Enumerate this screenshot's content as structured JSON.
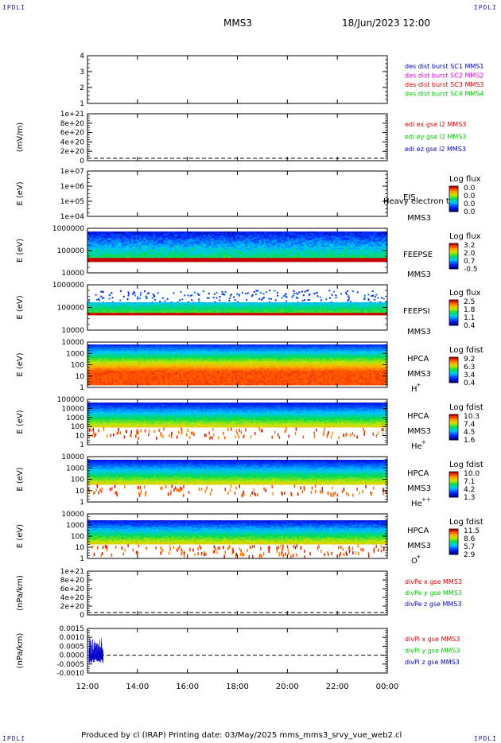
{
  "corners": {
    "tl": "IPDLI",
    "tr": "IPDLI",
    "bl": "IPDLI",
    "br": "IPDLI"
  },
  "header": {
    "spacecraft": "MMS3",
    "datetime": "18/Jun/2023 12:00"
  },
  "footer": {
    "text": "Produced by cl (IRAP)   Printing date: 03/May/2025   mms_mms3_srvy_vue_web2.cl"
  },
  "time_axis": {
    "ticks": [
      "12:00",
      "14:00",
      "16:00",
      "18:00",
      "20:00",
      "22:00",
      "00:00"
    ]
  },
  "colors": {
    "red": "#e00000",
    "green": "#00c800",
    "blue": "#0000c8",
    "magenta": "#e000e0"
  },
  "chart_data": [
    {
      "type": "line",
      "id": "dist",
      "ylabel": "",
      "yticks": [
        "1",
        "2",
        "3",
        "4"
      ],
      "legend": [
        {
          "label": "des dist burst SC1 MMS1",
          "color": "#0000c8"
        },
        {
          "label": "des dist burst SC2 MMS2",
          "color": "#e000e0"
        },
        {
          "label": "des dist burst SC3 MMS3",
          "color": "#e00000"
        },
        {
          "label": "des dist burst SC4 MMS4",
          "color": "#00c800"
        }
      ]
    },
    {
      "type": "line",
      "id": "edi",
      "ylabel": "(mV/m)",
      "yticks": [
        "0",
        "2e+20",
        "4e+20",
        "6e+20",
        "8e+20",
        "1e+21"
      ],
      "legend": [
        {
          "label": "edi ex gse l2 MMS3",
          "color": "#e00000"
        },
        {
          "label": "edi ey gse l2 MMS3",
          "color": "#00c800"
        },
        {
          "label": "edi ez gse l2 MMS3",
          "color": "#0000c8"
        }
      ]
    },
    {
      "type": "heatmap",
      "id": "eis",
      "ylabel": "E (eV)",
      "yticks": [
        "1e+04",
        "1e+05",
        "1e+06",
        "1e+07"
      ],
      "labels": [
        "EIS",
        "MMS3"
      ],
      "overlay": "Heavy electron to",
      "cbar_title": "Log flux",
      "cbar_ticks": [
        "0.0",
        "0.0",
        "0.0",
        "0.0"
      ]
    },
    {
      "type": "heatmap",
      "id": "feepse",
      "ylabel": "E (eV)",
      "yticks": [
        "10000",
        "100000",
        "1000000"
      ],
      "labels": [
        "FEEPSE",
        "MMS3"
      ],
      "cbar_title": "Log flux",
      "cbar_ticks": [
        "3.2",
        "2.0",
        "0.7",
        "-0.5"
      ]
    },
    {
      "type": "heatmap",
      "id": "feepsi",
      "ylabel": "E (eV)",
      "yticks": [
        "10000",
        "100000",
        "1000000"
      ],
      "labels": [
        "FEEPSI",
        "MMS3"
      ],
      "cbar_title": "Log flux",
      "cbar_ticks": [
        "2.5",
        "1.8",
        "1.1",
        "0.4"
      ]
    },
    {
      "type": "heatmap",
      "id": "hpca_h",
      "ylabel": "E (eV)",
      "yticks": [
        "1",
        "10",
        "100",
        "1000",
        "10000"
      ],
      "labels": [
        "HPCA",
        "MMS3"
      ],
      "species": "H",
      "charge": "+",
      "cbar_title": "Log fdist",
      "cbar_ticks": [
        "9.2",
        "6.3",
        "3.4",
        "0.4"
      ]
    },
    {
      "type": "heatmap",
      "id": "hpca_he",
      "ylabel": "E (eV)",
      "yticks": [
        "1",
        "10",
        "100",
        "1000",
        "10000",
        "100000"
      ],
      "labels": [
        "HPCA",
        "MMS3"
      ],
      "species": "He",
      "charge": "+",
      "cbar_title": "Log fdist",
      "cbar_ticks": [
        "10.3",
        "7.4",
        "4.5",
        "1.6"
      ]
    },
    {
      "type": "heatmap",
      "id": "hpca_hepp",
      "ylabel": "E (eV)",
      "yticks": [
        "1",
        "10",
        "100",
        "1000",
        "10000"
      ],
      "labels": [
        "HPCA",
        "MMS3"
      ],
      "species": "He",
      "charge": "++",
      "cbar_title": "Log fdist",
      "cbar_ticks": [
        "10.0",
        "7.1",
        "4.2",
        "1.3"
      ]
    },
    {
      "type": "heatmap",
      "id": "hpca_o",
      "ylabel": "E (eV)",
      "yticks": [
        "1",
        "10",
        "100",
        "1000",
        "10000"
      ],
      "labels": [
        "HPCA",
        "MMS3"
      ],
      "species": "O",
      "charge": "+",
      "cbar_title": "Log fdist",
      "cbar_ticks": [
        "11.5",
        "8.6",
        "5.7",
        "2.9"
      ]
    },
    {
      "type": "line",
      "id": "divpe",
      "ylabel": "(nPa/km)",
      "yticks": [
        "0",
        "2e+20",
        "4e+20",
        "6e+20",
        "8e+20",
        "1e+21"
      ],
      "legend": [
        {
          "label": "divPe x gse MMS3",
          "color": "#e00000"
        },
        {
          "label": "divPe y gse MMS3",
          "color": "#00c800"
        },
        {
          "label": "divPe z gse MMS3",
          "color": "#0000c8"
        }
      ]
    },
    {
      "type": "line",
      "id": "divpi",
      "ylabel": "(nPa/km)",
      "yticks": [
        "-0.0010",
        "-0.0005",
        "0.0000",
        "0.0005",
        "0.0010",
        "0.0015"
      ],
      "ylim": [
        -0.001,
        0.0015
      ],
      "legend": [
        {
          "label": "divPi x gse MMS3",
          "color": "#e00000"
        },
        {
          "label": "divPi y gse MMS3",
          "color": "#00c800"
        },
        {
          "label": "divPi z gse MMS3",
          "color": "#0000c8"
        }
      ]
    }
  ]
}
